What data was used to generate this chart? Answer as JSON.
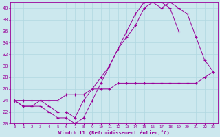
{
  "xlabel": "Windchill (Refroidissement éolien,°C)",
  "x": [
    0,
    1,
    2,
    3,
    4,
    5,
    6,
    7,
    8,
    9,
    10,
    11,
    12,
    13,
    14,
    15,
    16,
    17,
    18,
    19,
    20,
    21,
    22,
    23
  ],
  "line1": [
    24,
    23,
    23,
    23,
    22,
    21,
    21,
    20,
    21,
    24,
    27,
    30,
    33,
    36,
    39,
    41,
    41,
    41,
    40,
    36,
    null,
    null,
    null,
    null
  ],
  "line2": [
    24,
    23,
    23,
    24,
    23,
    22,
    22,
    21,
    24,
    26,
    28,
    30,
    33,
    35,
    37,
    40,
    41,
    40,
    41,
    40,
    39,
    35,
    31,
    29
  ],
  "line3": [
    24,
    24,
    24,
    24,
    24,
    24,
    25,
    25,
    25,
    26,
    26,
    26,
    27,
    27,
    27,
    27,
    27,
    27,
    27,
    27,
    27,
    27,
    28,
    29
  ],
  "bg_color": "#cce8ee",
  "grid_color": "#b0d8e0",
  "line_color": "#990099",
  "xlim": [
    -0.5,
    23.5
  ],
  "ylim": [
    20,
    41
  ],
  "yticks": [
    20,
    22,
    24,
    26,
    28,
    30,
    32,
    34,
    36,
    38,
    40
  ],
  "xticks": [
    0,
    1,
    2,
    3,
    4,
    5,
    6,
    7,
    8,
    9,
    10,
    11,
    12,
    13,
    14,
    15,
    16,
    17,
    18,
    19,
    20,
    21,
    22,
    23
  ]
}
